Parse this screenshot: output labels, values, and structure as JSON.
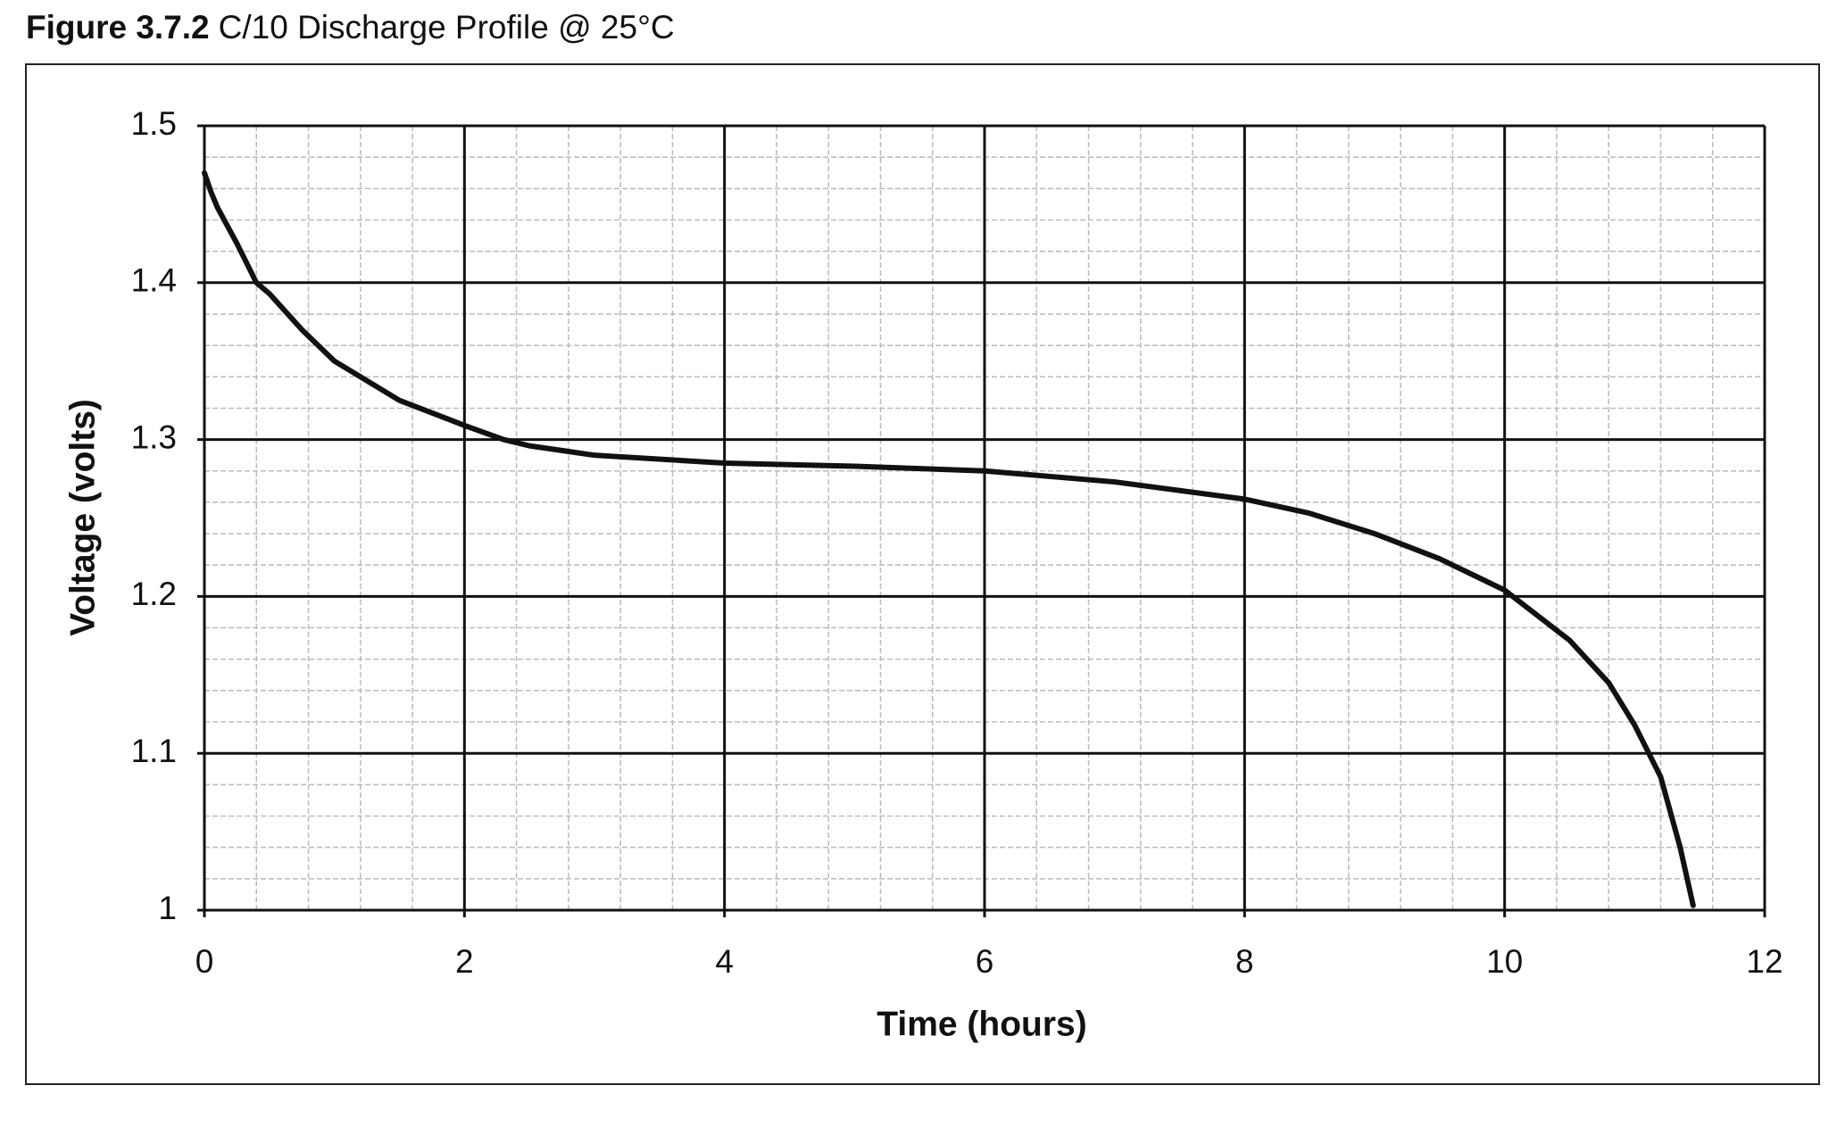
{
  "chart_data": {
    "type": "line",
    "figure_label": "Figure 3.7.2",
    "title": "C/10 Discharge Profile @ 25°C",
    "x_label": "Time (hours)",
    "y_label": "Voltage (volts)",
    "x": [
      0,
      0.05,
      0.1,
      0.25,
      0.4,
      0.5,
      0.75,
      1,
      1.5,
      2,
      2.3,
      2.5,
      3,
      4,
      5,
      6,
      7,
      8,
      8.5,
      9,
      9.5,
      10,
      10.5,
      10.8,
      11,
      11.2,
      11.35,
      11.45
    ],
    "values": [
      1.47,
      1.458,
      1.448,
      1.425,
      1.4,
      1.393,
      1.37,
      1.35,
      1.325,
      1.309,
      1.3,
      1.296,
      1.29,
      1.285,
      1.283,
      1.28,
      1.273,
      1.262,
      1.253,
      1.24,
      1.224,
      1.204,
      1.172,
      1.145,
      1.118,
      1.085,
      1.04,
      1.003
    ],
    "color": "#111111",
    "xlim": [
      0,
      12
    ],
    "ylim": [
      1,
      1.5
    ],
    "xticks": [
      0,
      2,
      4,
      6,
      8,
      10,
      12
    ],
    "yticks": [
      1,
      1.1,
      1.2,
      1.3,
      1.4,
      1.5
    ],
    "grid": true,
    "minor_grid": true
  }
}
